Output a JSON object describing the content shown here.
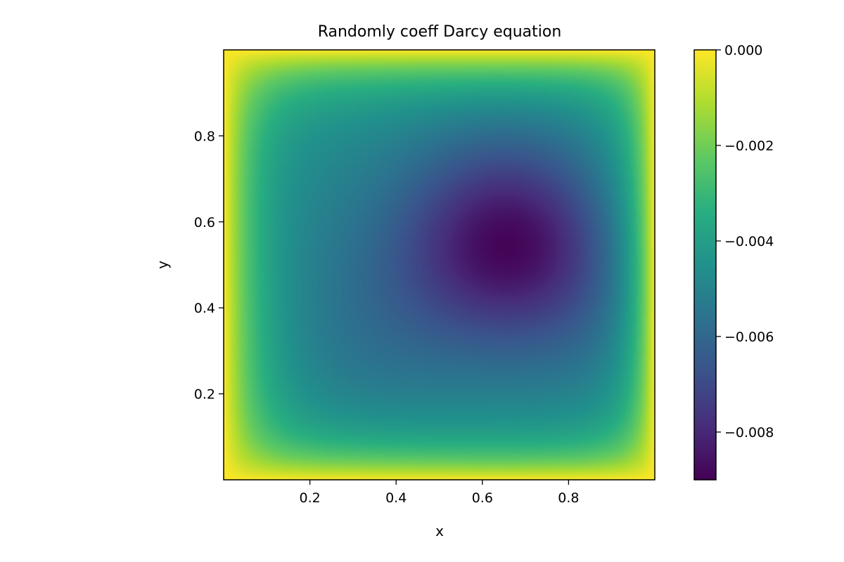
{
  "chart_data": {
    "type": "heatmap",
    "title": "Randomly coeff Darcy equation",
    "xlabel": "x",
    "ylabel": "y",
    "xlim": [
      0,
      1
    ],
    "ylim": [
      0,
      1
    ],
    "xticks": [
      0.2,
      0.4,
      0.6,
      0.8
    ],
    "xtick_labels": [
      "0.2",
      "0.4",
      "0.6",
      "0.8"
    ],
    "yticks": [
      0.2,
      0.4,
      0.6,
      0.8
    ],
    "ytick_labels": [
      "0.2",
      "0.4",
      "0.6",
      "0.8"
    ],
    "colormap": "viridis",
    "colorbar": {
      "range": [
        -0.009,
        0.0
      ],
      "ticks": [
        0.0,
        -0.002,
        -0.004,
        -0.006,
        -0.008
      ],
      "tick_labels": [
        "0.000",
        "−0.002",
        "−0.004",
        "−0.006",
        "−0.008"
      ]
    },
    "field": {
      "minimum": {
        "x": 0.66,
        "y": 0.53,
        "value": -0.009
      },
      "boundary_value": 0.0
    },
    "grid": false
  }
}
